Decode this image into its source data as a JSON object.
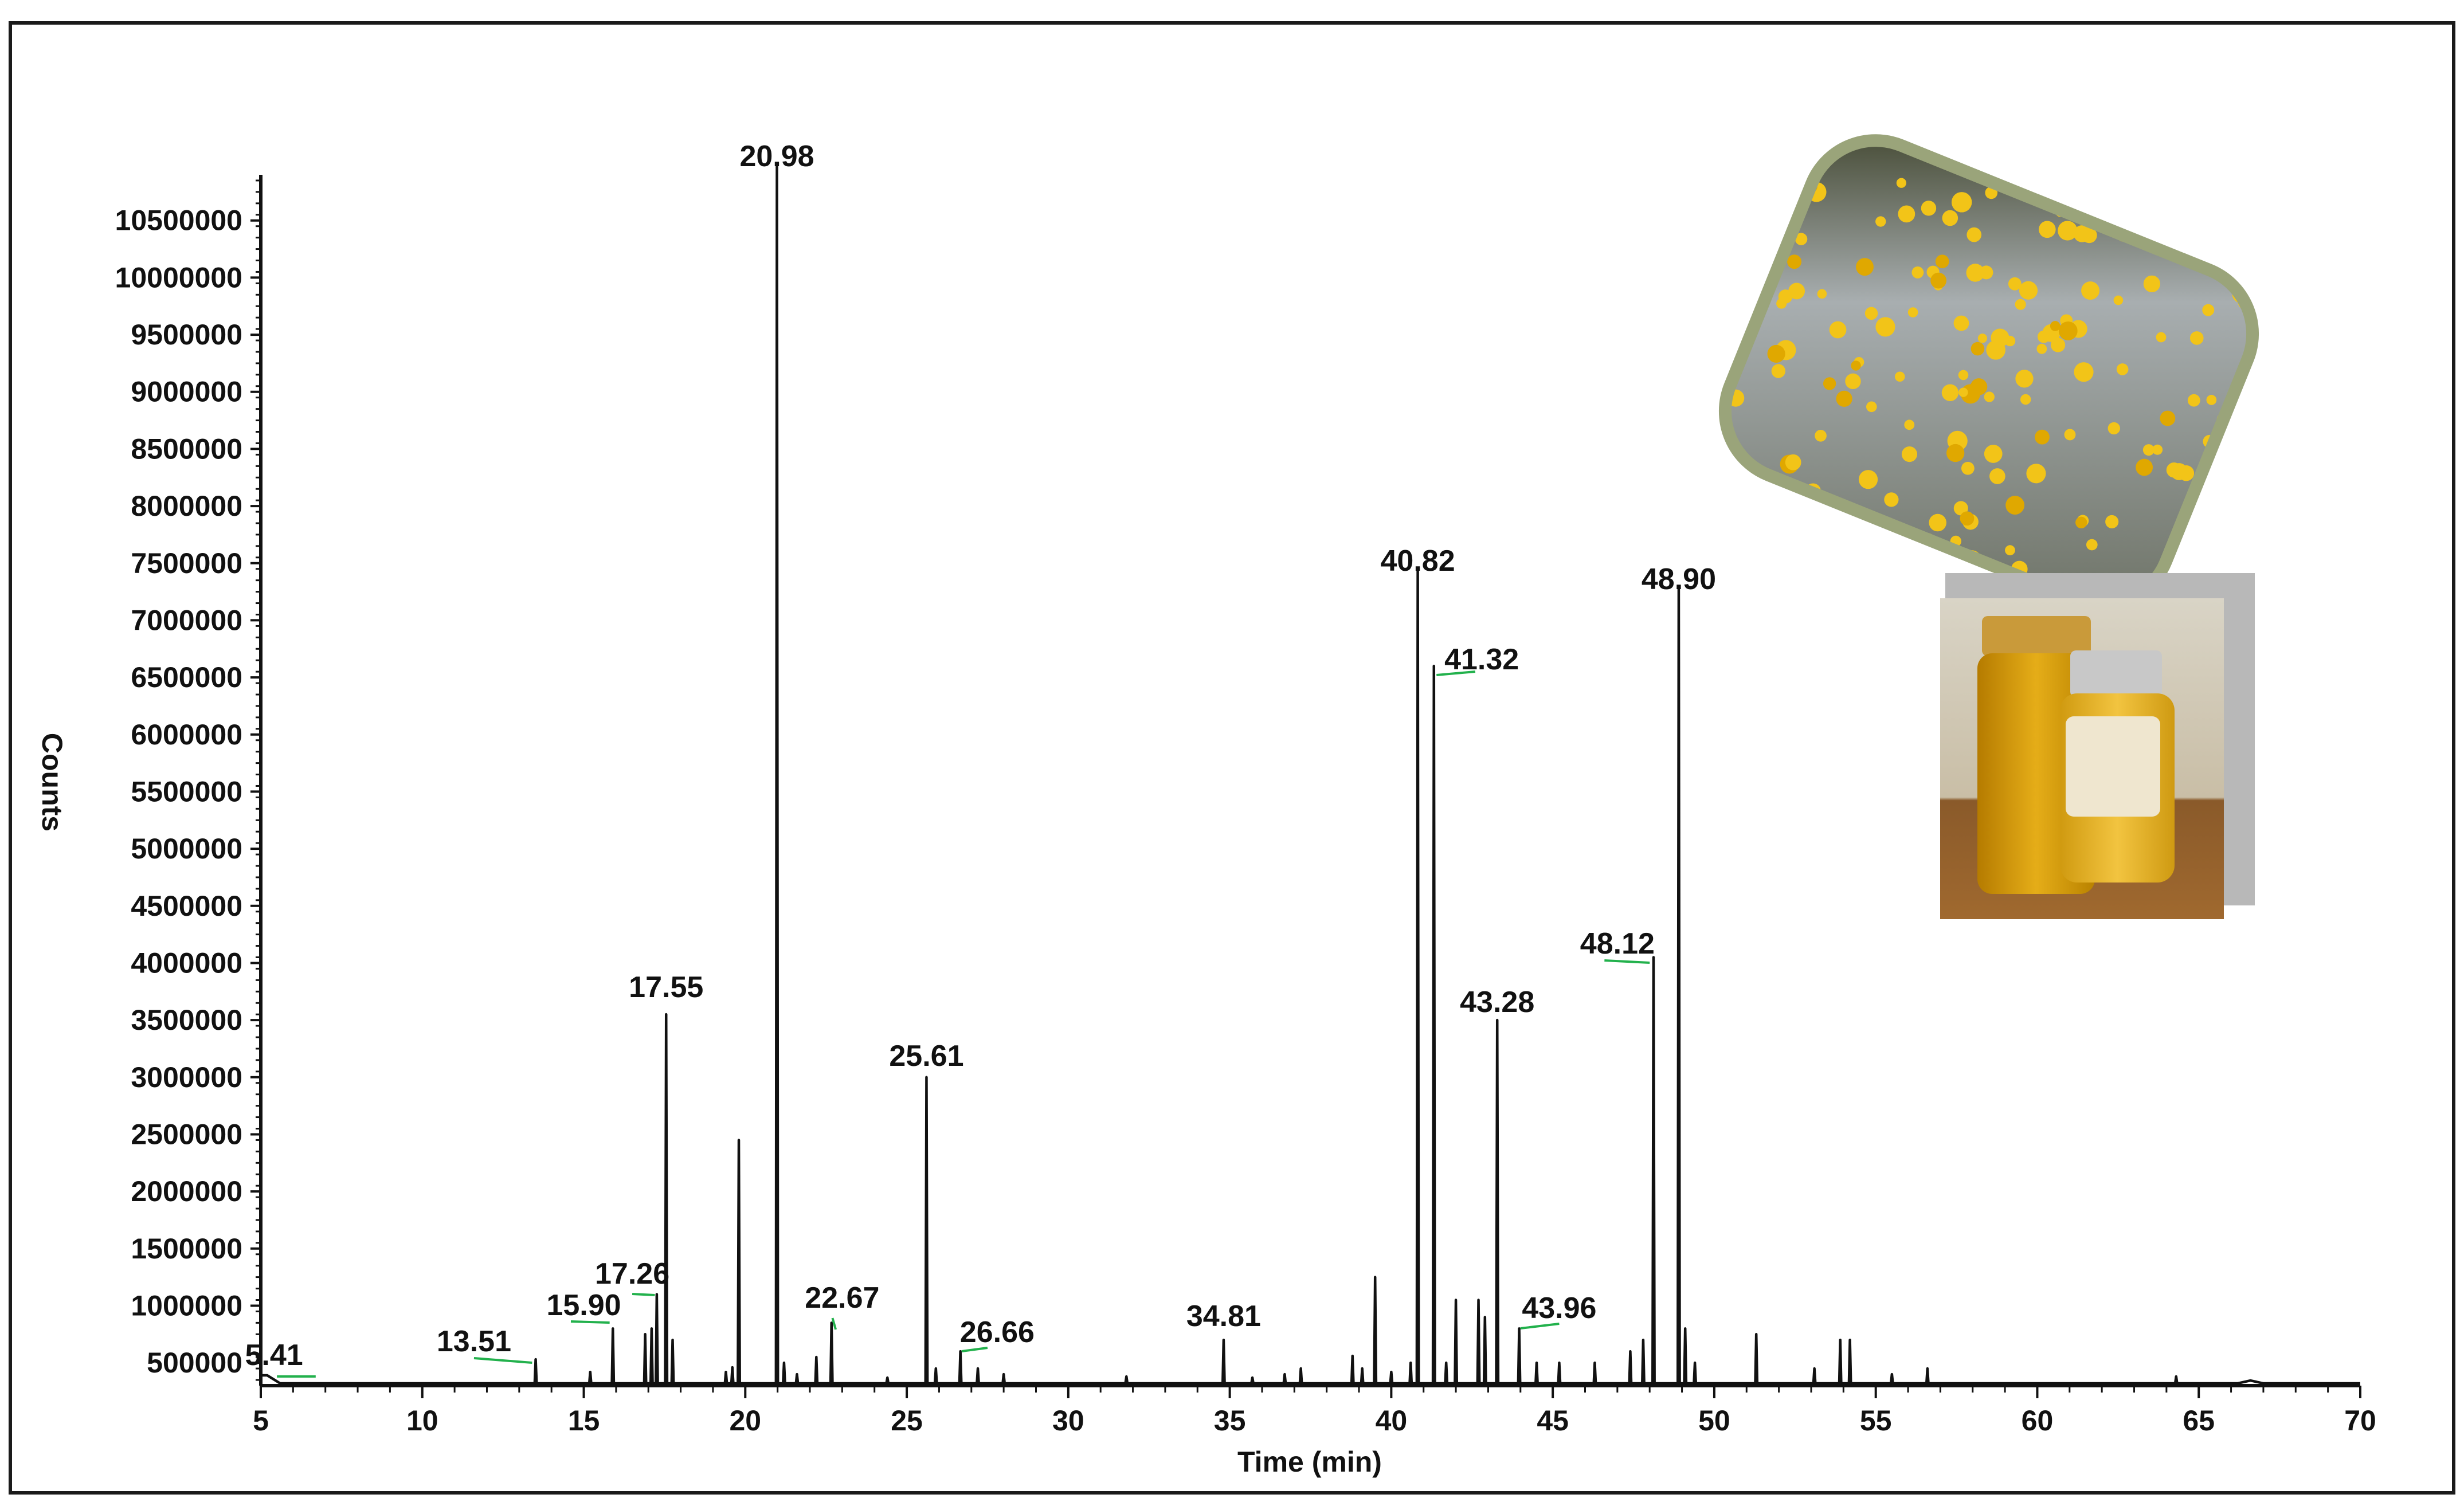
{
  "chart_data": {
    "type": "line",
    "title": "",
    "xlabel": "Time (min)",
    "ylabel": "Counts",
    "xlim": [
      5,
      70
    ],
    "ylim": [
      300000,
      10900000
    ],
    "x_ticks": [
      5,
      10,
      15,
      20,
      25,
      30,
      35,
      40,
      45,
      50,
      55,
      60,
      65,
      70
    ],
    "y_ticks": [
      500000,
      1000000,
      1500000,
      2000000,
      2500000,
      3000000,
      3500000,
      4000000,
      4500000,
      5000000,
      5500000,
      6000000,
      6500000,
      7000000,
      7500000,
      8000000,
      8500000,
      9000000,
      9500000,
      10000000,
      10500000
    ],
    "baseline": 320000,
    "grid": false,
    "legend": "none",
    "colors": {
      "trace": "#111111",
      "leader": "#22b14c",
      "frame": "#1a1a1a"
    },
    "labeled_peaks": [
      {
        "label": "5.41",
        "x": 5.41,
        "y": 420000
      },
      {
        "label": "13.51",
        "x": 13.51,
        "y": 530000
      },
      {
        "label": "15.90",
        "x": 15.9,
        "y": 800000
      },
      {
        "label": "17.26",
        "x": 17.26,
        "y": 1100000
      },
      {
        "label": "17.55",
        "x": 17.55,
        "y": 3550000
      },
      {
        "label": "20.98",
        "x": 20.98,
        "y": 10990000
      },
      {
        "label": "22.67",
        "x": 22.67,
        "y": 850000
      },
      {
        "label": "25.61",
        "x": 25.61,
        "y": 3000000
      },
      {
        "label": "26.66",
        "x": 26.66,
        "y": 600000
      },
      {
        "label": "34.81",
        "x": 34.81,
        "y": 700000
      },
      {
        "label": "40.82",
        "x": 40.82,
        "y": 7450000
      },
      {
        "label": "41.32",
        "x": 41.32,
        "y": 6600000
      },
      {
        "label": "43.28",
        "x": 43.28,
        "y": 3500000
      },
      {
        "label": "43.96",
        "x": 43.96,
        "y": 800000
      },
      {
        "label": "48.12",
        "x": 48.12,
        "y": 4050000
      },
      {
        "label": "48.90",
        "x": 48.9,
        "y": 7300000
      }
    ],
    "other_peaks": [
      {
        "x": 15.2,
        "y": 420000
      },
      {
        "x": 16.9,
        "y": 750000
      },
      {
        "x": 17.1,
        "y": 800000
      },
      {
        "x": 17.75,
        "y": 700000
      },
      {
        "x": 19.4,
        "y": 420000
      },
      {
        "x": 19.6,
        "y": 460000
      },
      {
        "x": 19.8,
        "y": 2450000
      },
      {
        "x": 21.2,
        "y": 500000
      },
      {
        "x": 21.6,
        "y": 400000
      },
      {
        "x": 22.2,
        "y": 550000
      },
      {
        "x": 24.4,
        "y": 370000
      },
      {
        "x": 25.9,
        "y": 450000
      },
      {
        "x": 27.2,
        "y": 450000
      },
      {
        "x": 28.0,
        "y": 400000
      },
      {
        "x": 31.8,
        "y": 380000
      },
      {
        "x": 35.7,
        "y": 370000
      },
      {
        "x": 36.7,
        "y": 400000
      },
      {
        "x": 37.2,
        "y": 450000
      },
      {
        "x": 38.8,
        "y": 560000
      },
      {
        "x": 39.1,
        "y": 450000
      },
      {
        "x": 39.5,
        "y": 1250000
      },
      {
        "x": 40.0,
        "y": 420000
      },
      {
        "x": 40.6,
        "y": 500000
      },
      {
        "x": 41.7,
        "y": 500000
      },
      {
        "x": 42.0,
        "y": 1050000
      },
      {
        "x": 42.7,
        "y": 1050000
      },
      {
        "x": 42.9,
        "y": 900000
      },
      {
        "x": 44.5,
        "y": 500000
      },
      {
        "x": 45.2,
        "y": 500000
      },
      {
        "x": 46.3,
        "y": 500000
      },
      {
        "x": 47.4,
        "y": 600000
      },
      {
        "x": 47.8,
        "y": 700000
      },
      {
        "x": 49.1,
        "y": 800000
      },
      {
        "x": 49.4,
        "y": 500000
      },
      {
        "x": 51.3,
        "y": 750000
      },
      {
        "x": 53.1,
        "y": 450000
      },
      {
        "x": 53.9,
        "y": 700000
      },
      {
        "x": 54.2,
        "y": 700000
      },
      {
        "x": 55.5,
        "y": 400000
      },
      {
        "x": 56.6,
        "y": 450000
      },
      {
        "x": 64.3,
        "y": 380000
      }
    ]
  }
}
